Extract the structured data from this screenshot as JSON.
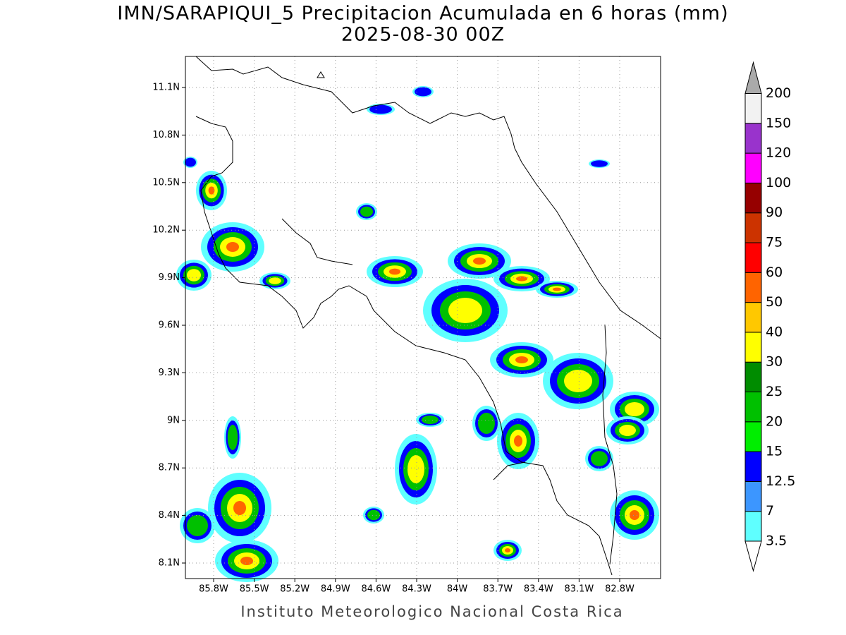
{
  "header": {
    "title": "IMN/SARAPIQUI_5 Precipitacion Acumulada en 6 horas (mm)",
    "subtitle": "2025-08-30 00Z"
  },
  "map": {
    "lon_ticks": [
      "85.8W",
      "85.5W",
      "85.2W",
      "84.9W",
      "84.6W",
      "84.3W",
      "84W",
      "83.7W",
      "83.4W",
      "83.1W",
      "82.8W"
    ],
    "lat_ticks": [
      "11.1N",
      "10.8N",
      "10.5N",
      "10.2N",
      "9.9N",
      "9.6N",
      "9.3N",
      "9N",
      "8.7N",
      "8.4N",
      "8.1N"
    ]
  },
  "colorbar": {
    "levels": [
      "3.5",
      "7",
      "12.5",
      "15",
      "20",
      "25",
      "30",
      "40",
      "50",
      "60",
      "75",
      "90",
      "100",
      "120",
      "150",
      "200"
    ],
    "colors": [
      "#ffffff",
      "#5fffff",
      "#3c96ff",
      "#0000ff",
      "#00ee00",
      "#00c000",
      "#008c00",
      "#ffff00",
      "#ffc800",
      "#ff6400",
      "#ff0000",
      "#cc3300",
      "#960000",
      "#ff00ff",
      "#9933cc",
      "#f2f2f2",
      "#aaaaaa"
    ]
  },
  "footer": "Instituto Meteorologico Nacional Costa Rica"
}
